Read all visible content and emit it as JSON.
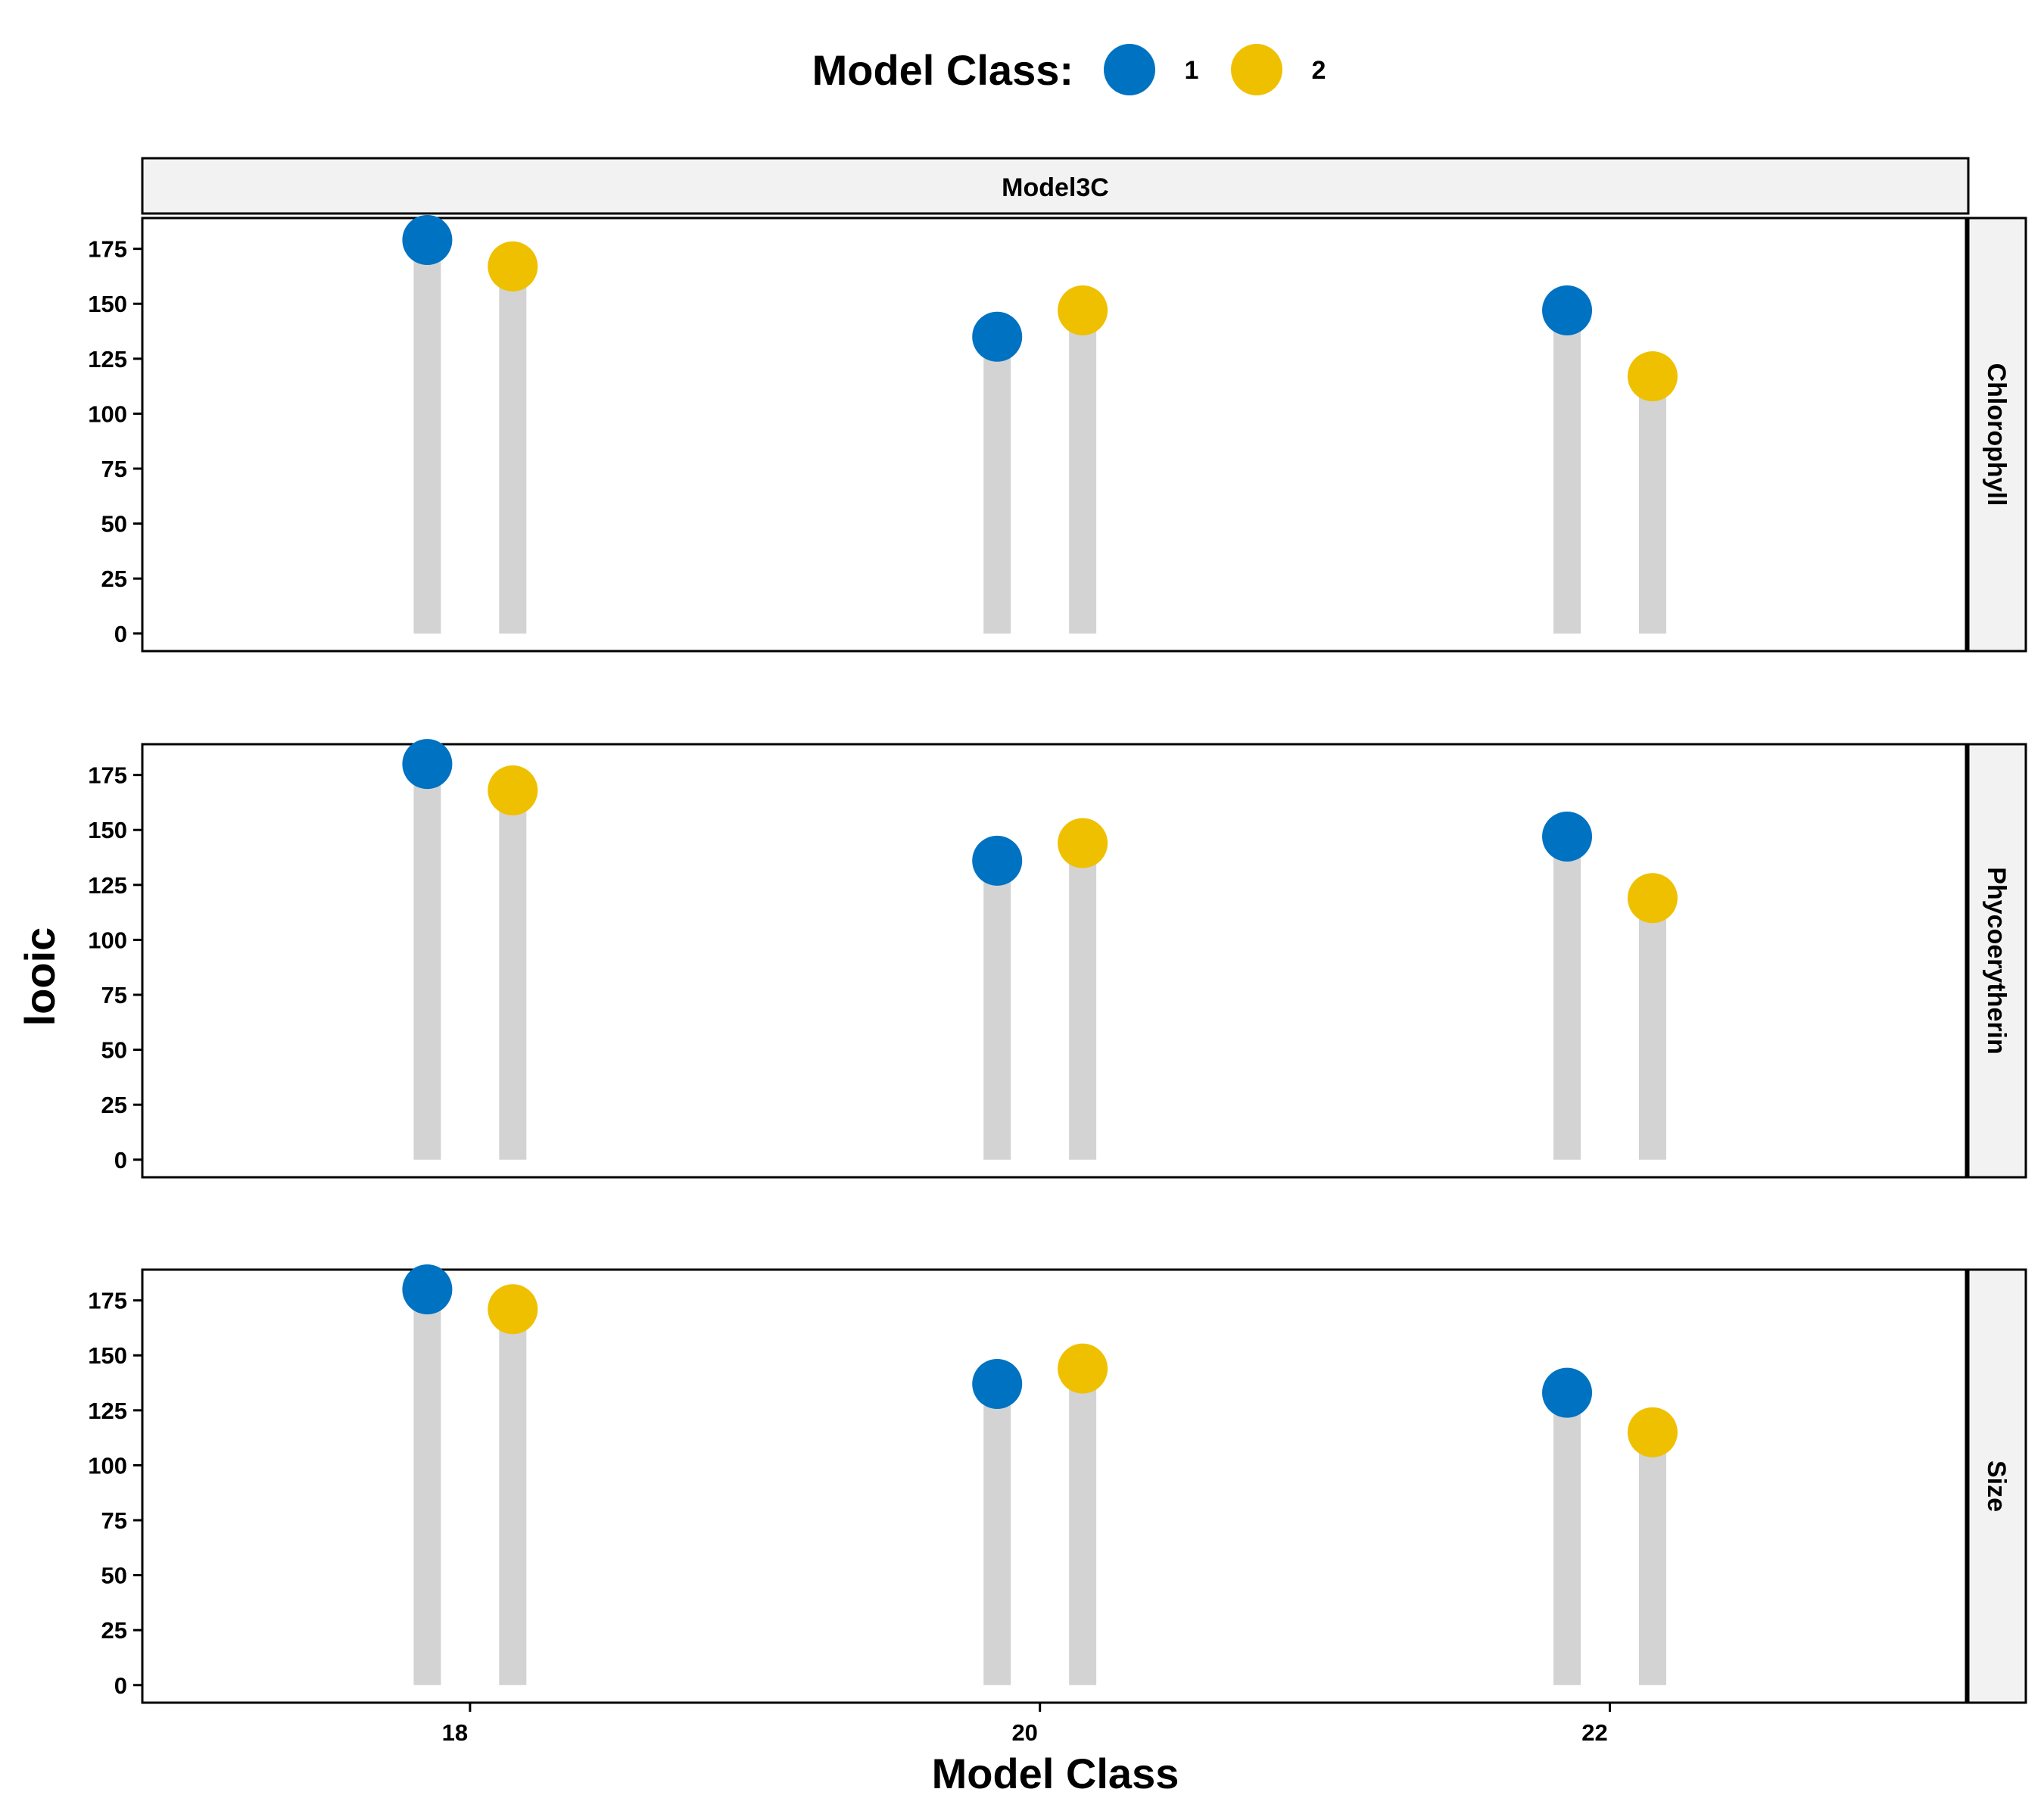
{
  "chart_data": {
    "type": "lollipop",
    "title": "",
    "xlabel": "Model Class",
    "ylabel": "looic",
    "column_strip": "Model3C",
    "legend": {
      "title": "Model Class:",
      "position": "top",
      "items": [
        {
          "label": "1",
          "color": "#0072C2"
        },
        {
          "label": "2",
          "color": "#EFC000"
        }
      ]
    },
    "x": [
      18,
      20,
      22
    ],
    "x_ticks": [
      "18",
      "20",
      "22"
    ],
    "xlim": [
      16.85,
      23.25
    ],
    "ylim": [
      -8,
      189
    ],
    "y_ticks": [
      "0",
      "25",
      "50",
      "75",
      "100",
      "125",
      "150",
      "175"
    ],
    "grid": false,
    "stem_color": "#D3D3D3",
    "panels": [
      {
        "name": "Chlorophyll",
        "series": [
          {
            "name": "1",
            "values": [
              179,
              135,
              147
            ]
          },
          {
            "name": "2",
            "values": [
              167,
              147,
              117
            ]
          }
        ]
      },
      {
        "name": "Phycoerytherin",
        "series": [
          {
            "name": "1",
            "values": [
              180,
              136,
              147
            ]
          },
          {
            "name": "2",
            "values": [
              168,
              144,
              119
            ]
          }
        ]
      },
      {
        "name": "Size",
        "series": [
          {
            "name": "1",
            "values": [
              180,
              137,
              133
            ]
          },
          {
            "name": "2",
            "values": [
              171,
              144,
              115
            ]
          }
        ]
      }
    ]
  }
}
